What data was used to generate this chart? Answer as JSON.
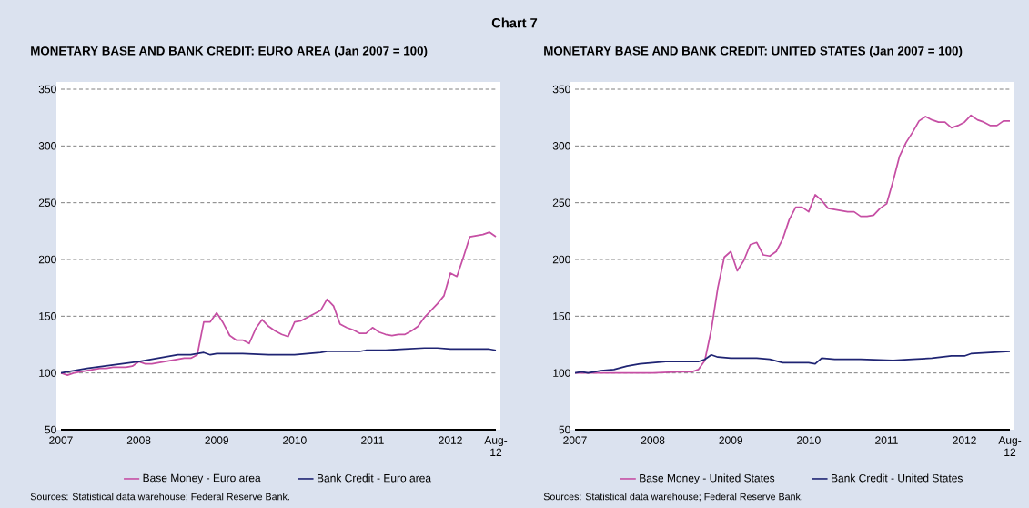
{
  "chart_data": [
    {
      "type": "line",
      "title": "Chart 7",
      "subtitle": "MONETARY BASE AND BANK CREDIT: EURO AREA (Jan 2007 = 100)",
      "xlim": [
        "2007-01",
        "2012-08"
      ],
      "xticks": [
        {
          "value": "2007-01",
          "label": "2007"
        },
        {
          "value": "2008-01",
          "label": "2008"
        },
        {
          "value": "2009-01",
          "label": "2009"
        },
        {
          "value": "2010-01",
          "label": "2010"
        },
        {
          "value": "2011-01",
          "label": "2011"
        },
        {
          "value": "2012-01",
          "label": "2012"
        },
        {
          "value": "2012-08",
          "label": "Aug-12"
        }
      ],
      "ylim": [
        50,
        350
      ],
      "yticks": [
        50,
        100,
        150,
        200,
        250,
        300,
        350
      ],
      "grid": "y",
      "legend": "bottom",
      "annotations": [
        "Sources: Statistical data warehouse; Federal Reserve Bank."
      ],
      "series": [
        {
          "name": "Base Money - Euro area",
          "color": "#c64fa4",
          "x": [
            "2007-01",
            "2007-02",
            "2007-03",
            "2007-04",
            "2007-05",
            "2007-06",
            "2007-07",
            "2007-08",
            "2007-09",
            "2007-10",
            "2007-11",
            "2007-12",
            "2008-01",
            "2008-02",
            "2008-03",
            "2008-04",
            "2008-05",
            "2008-06",
            "2008-07",
            "2008-08",
            "2008-09",
            "2008-10",
            "2008-11",
            "2008-12",
            "2009-01",
            "2009-02",
            "2009-03",
            "2009-04",
            "2009-05",
            "2009-06",
            "2009-07",
            "2009-08",
            "2009-09",
            "2009-10",
            "2009-11",
            "2009-12",
            "2010-01",
            "2010-02",
            "2010-03",
            "2010-04",
            "2010-05",
            "2010-06",
            "2010-07",
            "2010-08",
            "2010-09",
            "2010-10",
            "2010-11",
            "2010-12",
            "2011-01",
            "2011-02",
            "2011-03",
            "2011-04",
            "2011-05",
            "2011-06",
            "2011-07",
            "2011-08",
            "2011-09",
            "2011-10",
            "2011-11",
            "2011-12",
            "2012-01",
            "2012-02",
            "2012-03",
            "2012-04",
            "2012-05",
            "2012-06",
            "2012-07",
            "2012-08"
          ],
          "values": [
            100,
            98,
            100,
            101,
            102,
            103,
            104,
            104,
            105,
            105,
            105,
            106,
            110,
            108,
            108,
            109,
            110,
            111,
            112,
            113,
            113,
            116,
            145,
            145,
            153,
            144,
            133,
            129,
            129,
            126,
            139,
            147,
            141,
            137,
            134,
            132,
            145,
            146,
            149,
            152,
            155,
            165,
            159,
            143,
            140,
            138,
            135,
            135,
            140,
            136,
            134,
            133,
            134,
            134,
            137,
            141,
            149,
            155,
            161,
            168,
            188,
            185,
            202,
            220,
            221,
            222,
            224,
            220
          ]
        },
        {
          "name": "Bank Credit - Euro area",
          "color": "#1f2473",
          "x": [
            "2007-01",
            "2007-05",
            "2007-09",
            "2008-01",
            "2008-05",
            "2008-07",
            "2008-09",
            "2008-11",
            "2008-12",
            "2009-01",
            "2009-05",
            "2009-09",
            "2010-01",
            "2010-05",
            "2010-06",
            "2010-11",
            "2010-12",
            "2011-03",
            "2011-06",
            "2011-09",
            "2011-11",
            "2012-01",
            "2012-04",
            "2012-07",
            "2012-08"
          ],
          "values": [
            100,
            104,
            107,
            110,
            114,
            116,
            116,
            118,
            116,
            117,
            117,
            116,
            116,
            118,
            119,
            119,
            120,
            120,
            121,
            122,
            122,
            121,
            121,
            121,
            120
          ]
        }
      ]
    },
    {
      "type": "line",
      "subtitle": "MONETARY BASE AND BANK CREDIT: UNITED STATES (Jan 2007 = 100)",
      "xlim": [
        "2007-01",
        "2012-08"
      ],
      "xticks": [
        {
          "value": "2007-01",
          "label": "2007"
        },
        {
          "value": "2008-01",
          "label": "2008"
        },
        {
          "value": "2009-01",
          "label": "2009"
        },
        {
          "value": "2010-01",
          "label": "2010"
        },
        {
          "value": "2011-01",
          "label": "2011"
        },
        {
          "value": "2012-01",
          "label": "2012"
        },
        {
          "value": "2012-08",
          "label": "Aug-12"
        }
      ],
      "ylim": [
        50,
        350
      ],
      "yticks": [
        50,
        100,
        150,
        200,
        250,
        300,
        350
      ],
      "grid": "y",
      "legend": "bottom",
      "annotations": [
        "Sources: Statistical data warehouse; Federal Reserve Bank."
      ],
      "series": [
        {
          "name": "Base Money - United States",
          "color": "#c64fa4",
          "x": [
            "2007-01",
            "2007-09",
            "2008-01",
            "2008-05",
            "2008-07",
            "2008-08",
            "2008-09",
            "2008-10",
            "2008-11",
            "2008-12",
            "2009-01",
            "2009-02",
            "2009-03",
            "2009-04",
            "2009-05",
            "2009-06",
            "2009-07",
            "2009-08",
            "2009-09",
            "2009-10",
            "2009-11",
            "2009-12",
            "2010-01",
            "2010-02",
            "2010-03",
            "2010-04",
            "2010-05",
            "2010-06",
            "2010-07",
            "2010-08",
            "2010-09",
            "2010-10",
            "2010-11",
            "2010-12",
            "2011-01",
            "2011-02",
            "2011-03",
            "2011-04",
            "2011-05",
            "2011-06",
            "2011-07",
            "2011-08",
            "2011-09",
            "2011-10",
            "2011-11",
            "2011-12",
            "2012-01",
            "2012-02",
            "2012-03",
            "2012-04",
            "2012-05",
            "2012-06",
            "2012-07",
            "2012-08"
          ],
          "values": [
            100,
            100,
            100,
            101,
            101,
            103,
            111,
            138,
            175,
            202,
            207,
            190,
            199,
            213,
            215,
            204,
            203,
            207,
            218,
            235,
            246,
            246,
            242,
            257,
            252,
            245,
            244,
            243,
            242,
            242,
            238,
            238,
            239,
            245,
            249,
            269,
            291,
            303,
            312,
            322,
            326,
            323,
            321,
            321,
            316,
            318,
            321,
            327,
            323,
            321,
            318,
            318,
            322,
            322
          ]
        },
        {
          "name": "Bank Credit - United States",
          "color": "#1f2473",
          "x": [
            "2007-01",
            "2007-02",
            "2007-03",
            "2007-05",
            "2007-07",
            "2007-09",
            "2007-11",
            "2008-01",
            "2008-03",
            "2008-05",
            "2008-08",
            "2008-09",
            "2008-10",
            "2008-11",
            "2009-01",
            "2009-03",
            "2009-05",
            "2009-07",
            "2009-09",
            "2009-11",
            "2010-01",
            "2010-02",
            "2010-03",
            "2010-05",
            "2010-09",
            "2011-02",
            "2011-05",
            "2011-08",
            "2011-11",
            "2012-01",
            "2012-02",
            "2012-05",
            "2012-08"
          ],
          "values": [
            100,
            101,
            100,
            102,
            103,
            106,
            108,
            109,
            110,
            110,
            110,
            112,
            116,
            114,
            113,
            113,
            113,
            112,
            109,
            109,
            109,
            108,
            113,
            112,
            112,
            111,
            112,
            113,
            115,
            115,
            117,
            118,
            119
          ]
        }
      ]
    }
  ]
}
